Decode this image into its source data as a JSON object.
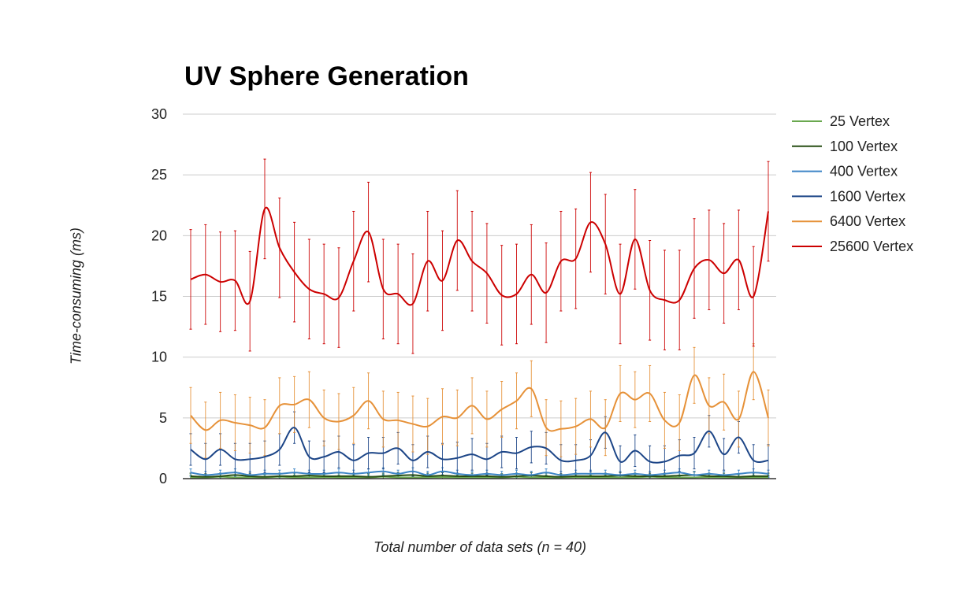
{
  "chart_data": {
    "type": "line",
    "title": "UV Sphere Generation",
    "xlabel": "Total number of data sets (n = 40)",
    "ylabel": "Time-consuming (ms)",
    "ylim": [
      0,
      30
    ],
    "yticks": [
      0,
      5,
      10,
      15,
      20,
      25,
      30
    ],
    "grid": true,
    "legend_position": "right",
    "x": [
      1,
      2,
      3,
      4,
      5,
      6,
      7,
      8,
      9,
      10,
      11,
      12,
      13,
      14,
      15,
      16,
      17,
      18,
      19,
      20,
      21,
      22,
      23,
      24,
      25,
      26,
      27,
      28,
      29,
      30,
      31,
      32,
      33,
      34,
      35,
      36,
      37,
      38,
      39,
      40
    ],
    "series": [
      {
        "name": "25 Vertex",
        "color": "#6aa84f",
        "values": [
          0.1,
          0.1,
          0.15,
          0.1,
          0.1,
          0.1,
          0.15,
          0.1,
          0.1,
          0.12,
          0.1,
          0.1,
          0.1,
          0.15,
          0.1,
          0.1,
          0.1,
          0.12,
          0.1,
          0.1,
          0.1,
          0.1,
          0.15,
          0.1,
          0.1,
          0.1,
          0.12,
          0.1,
          0.1,
          0.1,
          0.1,
          0.15,
          0.1,
          0.1,
          0.1,
          0.12,
          0.1,
          0.1,
          0.1,
          0.1
        ],
        "error": [
          0.2,
          0.2,
          0.2,
          0.2,
          0.2,
          0.2,
          0.2,
          0.2,
          0.2,
          0.2,
          0.2,
          0.2,
          0.2,
          0.2,
          0.2,
          0.2,
          0.2,
          0.2,
          0.2,
          0.2,
          0.2,
          0.2,
          0.2,
          0.2,
          0.2,
          0.2,
          0.2,
          0.2,
          0.2,
          0.2,
          0.2,
          0.2,
          0.2,
          0.2,
          0.2,
          0.2,
          0.2,
          0.2,
          0.2,
          0.2
        ]
      },
      {
        "name": "100 Vertex",
        "color": "#274e13",
        "values": [
          0.2,
          0.15,
          0.2,
          0.3,
          0.2,
          0.15,
          0.2,
          0.2,
          0.25,
          0.2,
          0.2,
          0.2,
          0.15,
          0.2,
          0.25,
          0.3,
          0.2,
          0.25,
          0.2,
          0.2,
          0.2,
          0.15,
          0.2,
          0.25,
          0.2,
          0.15,
          0.2,
          0.2,
          0.2,
          0.25,
          0.2,
          0.2,
          0.2,
          0.25,
          0.3,
          0.2,
          0.2,
          0.15,
          0.2,
          0.2
        ],
        "error": [
          0.25,
          0.25,
          0.25,
          0.25,
          0.25,
          0.25,
          0.25,
          0.25,
          0.25,
          0.25,
          0.25,
          0.25,
          0.25,
          0.25,
          0.25,
          0.25,
          0.25,
          0.25,
          0.25,
          0.25,
          0.25,
          0.25,
          0.25,
          0.25,
          0.25,
          0.25,
          0.25,
          0.25,
          0.25,
          0.25,
          0.25,
          0.25,
          0.25,
          0.25,
          0.25,
          0.25,
          0.25,
          0.25,
          0.25,
          0.25
        ]
      },
      {
        "name": "400 Vertex",
        "color": "#3d85c6",
        "values": [
          0.5,
          0.3,
          0.4,
          0.5,
          0.3,
          0.4,
          0.4,
          0.5,
          0.4,
          0.4,
          0.5,
          0.4,
          0.5,
          0.6,
          0.4,
          0.6,
          0.3,
          0.6,
          0.4,
          0.3,
          0.4,
          0.3,
          0.4,
          0.3,
          0.5,
          0.3,
          0.4,
          0.4,
          0.4,
          0.3,
          0.4,
          0.3,
          0.4,
          0.5,
          0.3,
          0.4,
          0.3,
          0.4,
          0.5,
          0.4
        ],
        "error": [
          0.3,
          0.3,
          0.3,
          0.3,
          0.3,
          0.3,
          0.3,
          0.3,
          0.3,
          0.3,
          0.3,
          0.3,
          0.3,
          0.3,
          0.3,
          0.3,
          0.3,
          0.3,
          0.3,
          0.3,
          0.3,
          0.3,
          0.3,
          0.3,
          0.3,
          0.3,
          0.3,
          0.3,
          0.3,
          0.3,
          0.3,
          0.3,
          0.3,
          0.3,
          0.3,
          0.3,
          0.3,
          0.3,
          0.3,
          0.3
        ]
      },
      {
        "name": "1600 Vertex",
        "color": "#1c4587",
        "values": [
          2.4,
          1.6,
          2.4,
          1.6,
          1.6,
          1.8,
          2.4,
          4.2,
          1.8,
          1.8,
          2.2,
          1.5,
          2.1,
          2.1,
          2.5,
          1.5,
          2.2,
          1.6,
          1.7,
          2.0,
          1.6,
          2.2,
          2.1,
          2.6,
          2.5,
          1.5,
          1.5,
          1.9,
          3.8,
          1.4,
          2.3,
          1.4,
          1.4,
          1.9,
          2.1,
          3.9,
          2.0,
          3.4,
          1.5,
          1.5
        ],
        "error": [
          1.3,
          1.3,
          1.3,
          1.3,
          1.3,
          1.3,
          1.3,
          1.3,
          1.3,
          1.3,
          1.3,
          1.3,
          1.3,
          1.3,
          1.3,
          1.3,
          1.3,
          1.3,
          1.3,
          1.3,
          1.3,
          1.3,
          1.3,
          1.3,
          1.3,
          1.3,
          1.3,
          1.3,
          1.3,
          1.3,
          1.3,
          1.3,
          1.3,
          1.3,
          1.3,
          1.3,
          1.3,
          1.3,
          1.3,
          1.3
        ]
      },
      {
        "name": "6400 Vertex",
        "color": "#e69138",
        "values": [
          5.2,
          4.0,
          4.8,
          4.6,
          4.4,
          4.2,
          6.0,
          6.1,
          6.5,
          5.0,
          4.7,
          5.2,
          6.4,
          4.9,
          4.8,
          4.5,
          4.3,
          5.1,
          5.0,
          6.0,
          4.9,
          5.7,
          6.4,
          7.4,
          4.2,
          4.1,
          4.3,
          4.9,
          4.2,
          7.0,
          6.5,
          7.0,
          4.8,
          4.6,
          8.5,
          6.0,
          6.3,
          4.9,
          8.8,
          5.0
        ],
        "error": [
          2.3,
          2.3,
          2.3,
          2.3,
          2.3,
          2.3,
          2.3,
          2.3,
          2.3,
          2.3,
          2.3,
          2.3,
          2.3,
          2.3,
          2.3,
          2.3,
          2.3,
          2.3,
          2.3,
          2.3,
          2.3,
          2.3,
          2.3,
          2.3,
          2.3,
          2.3,
          2.3,
          2.3,
          2.3,
          2.3,
          2.3,
          2.3,
          2.3,
          2.3,
          2.3,
          2.3,
          2.3,
          2.3,
          2.3,
          2.3
        ]
      },
      {
        "name": "25600 Vertex",
        "color": "#cc0000",
        "values": [
          16.4,
          16.8,
          16.2,
          16.3,
          14.6,
          22.2,
          19.0,
          17.0,
          15.6,
          15.2,
          14.9,
          17.9,
          20.3,
          15.6,
          15.2,
          14.4,
          17.9,
          16.3,
          19.6,
          17.9,
          16.9,
          15.1,
          15.2,
          16.8,
          15.3,
          17.9,
          18.1,
          21.1,
          19.3,
          15.2,
          19.7,
          15.5,
          14.7,
          14.7,
          17.3,
          18.0,
          16.9,
          18.0,
          15.0,
          22.0
        ],
        "error": [
          4.1,
          4.1,
          4.1,
          4.1,
          4.1,
          4.1,
          4.1,
          4.1,
          4.1,
          4.1,
          4.1,
          4.1,
          4.1,
          4.1,
          4.1,
          4.1,
          4.1,
          4.1,
          4.1,
          4.1,
          4.1,
          4.1,
          4.1,
          4.1,
          4.1,
          4.1,
          4.1,
          4.1,
          4.1,
          4.1,
          4.1,
          4.1,
          4.1,
          4.1,
          4.1,
          4.1,
          4.1,
          4.1,
          4.1,
          4.1
        ]
      }
    ]
  }
}
